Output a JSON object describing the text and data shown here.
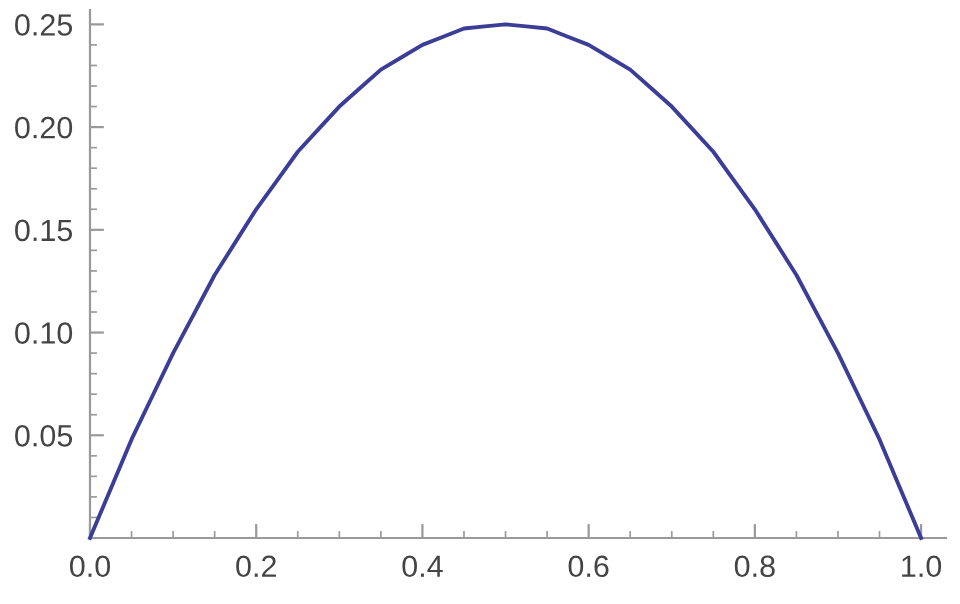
{
  "chart_data": {
    "type": "line",
    "x": [
      0,
      0.025,
      0.05,
      0.075,
      0.1,
      0.125,
      0.15,
      0.175,
      0.2,
      0.225,
      0.25,
      0.275,
      0.3,
      0.325,
      0.35,
      0.375,
      0.4,
      0.425,
      0.45,
      0.475,
      0.5,
      0.525,
      0.55,
      0.575,
      0.6,
      0.625,
      0.65,
      0.675,
      0.7,
      0.725,
      0.75,
      0.775,
      0.8,
      0.825,
      0.85,
      0.875,
      0.9,
      0.925,
      0.95,
      0.975,
      1
    ],
    "series": [
      {
        "color": "#3b3d96",
        "values": [
          0,
          0.024,
          0.048,
          0.069,
          0.09,
          0.109,
          0.128,
          0.144,
          0.16,
          0.174,
          0.188,
          0.199,
          0.21,
          0.219,
          0.228,
          0.234,
          0.24,
          0.244,
          0.248,
          0.249,
          0.25,
          0.249,
          0.248,
          0.244,
          0.24,
          0.234,
          0.228,
          0.219,
          0.21,
          0.199,
          0.188,
          0.174,
          0.16,
          0.144,
          0.128,
          0.109,
          0.09,
          0.069,
          0.048,
          0.024,
          0
        ]
      }
    ],
    "xlim": [
      0,
      1.03
    ],
    "ylim": [
      0,
      0.257
    ],
    "xticks": [
      {
        "value": 0,
        "label": "0.0"
      },
      0.2,
      0.4,
      0.6,
      0.8,
      {
        "value": 1,
        "label": "1.0"
      }
    ],
    "yticks": [
      0.05,
      {
        "value": 0.1,
        "label": "0.10"
      },
      0.15,
      {
        "value": 0.2,
        "label": "0.20"
      },
      0.25
    ],
    "grid": false,
    "marker": "none",
    "line_style": "solid"
  }
}
